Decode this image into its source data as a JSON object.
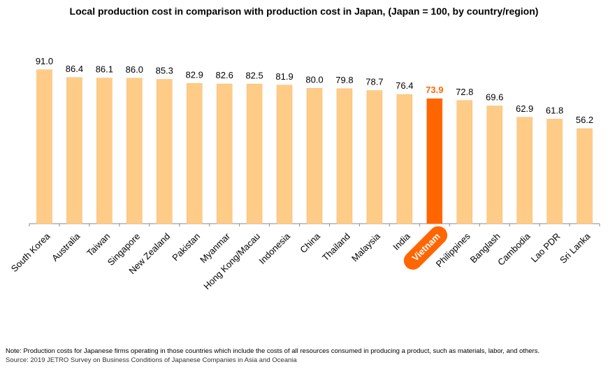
{
  "chart_data": {
    "type": "bar",
    "title": "Local production cost in comparison with production cost in Japan, (Japan = 100, by country/region)",
    "categories": [
      "South Korea",
      "Australia",
      "Taiwan",
      "Singapore",
      "New Zealand",
      "Pakistan",
      "Myanmar",
      "Hong Kong/Macau",
      "Indonesia",
      "China",
      "Thailand",
      "Malaysia",
      "India",
      "Vietnam",
      "Philippines",
      "Banglash",
      "Cambodia",
      "Lao PDR",
      "Sri Lanka"
    ],
    "values": [
      91.0,
      86.4,
      86.1,
      86.0,
      85.3,
      82.9,
      82.6,
      82.5,
      81.9,
      80.0,
      79.8,
      78.7,
      76.4,
      73.9,
      72.8,
      69.6,
      62.9,
      61.8,
      56.2
    ],
    "value_labels": [
      "91.0",
      "86.4",
      "86.1",
      "86.0",
      "85.3",
      "82.9",
      "82.6",
      "82.5",
      "81.9",
      "80.0",
      "79.8",
      "78.7",
      "76.4",
      "73.9",
      "72.8",
      "69.6",
      "62.9",
      "61.8",
      "56.2"
    ],
    "highlight": "Vietnam",
    "ylim": [
      0,
      100
    ],
    "grid": false,
    "colors": {
      "bar": "#FFCC88",
      "bar_stroke": "#F2B66A",
      "highlight": "#FF6600",
      "axis": "#888888"
    }
  },
  "footer": {
    "note": "Note: Production costs for Japanese firms operating in those countries which include the costs of all resources consumed in producing a product, such as materials, labor, and others.",
    "source": "Source: 2019 JETRO Survey on Business Conditions of Japanese Companies in Asia and Oceania"
  }
}
